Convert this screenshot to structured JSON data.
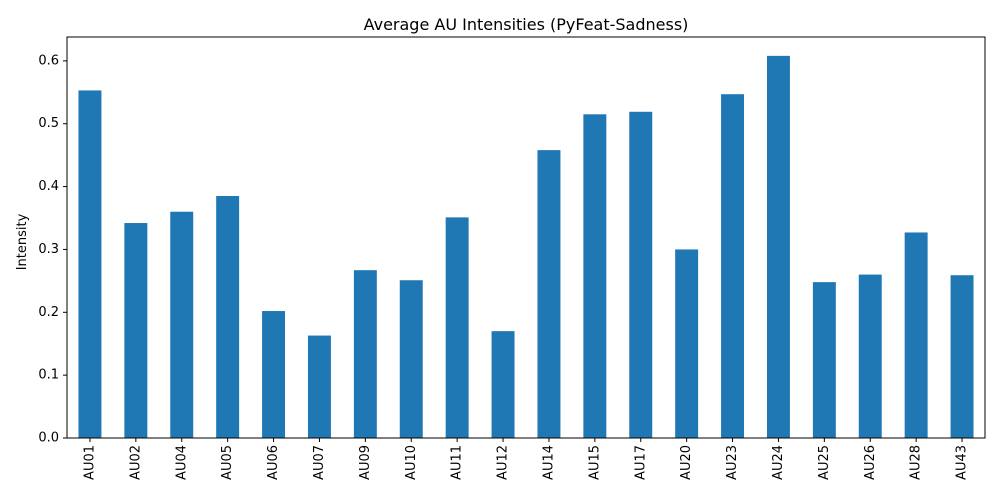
{
  "chart_data": {
    "type": "bar",
    "title": "Average AU Intensities (PyFeat-Sadness)",
    "xlabel": "",
    "ylabel": "Intensity",
    "categories": [
      "AU01",
      "AU02",
      "AU04",
      "AU05",
      "AU06",
      "AU07",
      "AU09",
      "AU10",
      "AU11",
      "AU12",
      "AU14",
      "AU15",
      "AU17",
      "AU20",
      "AU23",
      "AU24",
      "AU25",
      "AU26",
      "AU28",
      "AU43"
    ],
    "values": [
      0.553,
      0.342,
      0.36,
      0.385,
      0.202,
      0.163,
      0.267,
      0.251,
      0.351,
      0.17,
      0.458,
      0.515,
      0.519,
      0.3,
      0.547,
      0.608,
      0.248,
      0.26,
      0.327,
      0.259
    ],
    "ylim": [
      0,
      0.638
    ],
    "yticks": [
      "0.0",
      "0.1",
      "0.2",
      "0.3",
      "0.4",
      "0.5",
      "0.6"
    ],
    "grid": false,
    "bar_color": "#1f77b4"
  }
}
